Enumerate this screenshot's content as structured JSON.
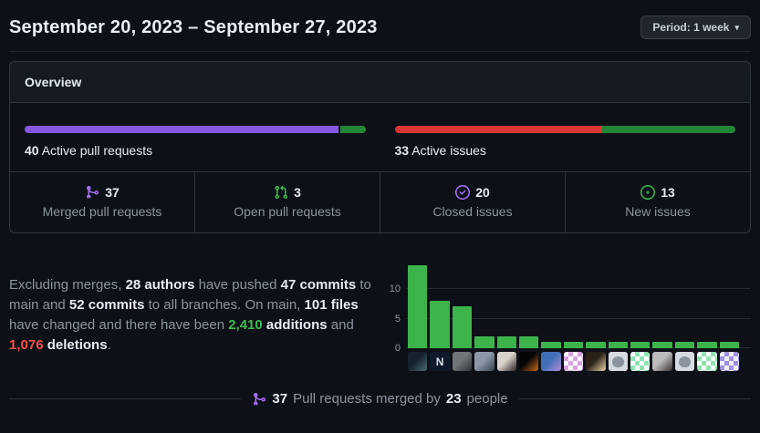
{
  "header": {
    "title": "September 20, 2023 – September 27, 2023",
    "period_label": "Period: 1 week"
  },
  "icons": {
    "dropdown_caret": "▾"
  },
  "colors": {
    "merged_purple": "#8957e5",
    "open_green": "#238636",
    "closed_red": "#da3633",
    "icon_purple": "#a371f7",
    "icon_green": "#3fb950",
    "additions_green": "#3fb950",
    "deletions_red": "#f85149"
  },
  "overview": {
    "title": "Overview",
    "pull_requests": {
      "count": "40",
      "label": " Active pull requests",
      "merged_pct": 92.5,
      "open_pct": 7.5,
      "merged_color": "#8957e5",
      "open_color": "#238636"
    },
    "issues": {
      "count": "33",
      "label": " Active issues",
      "closed_pct": 60.6,
      "new_pct": 39.4,
      "closed_color": "#da3633",
      "new_color": "#238636"
    },
    "stats": [
      {
        "value": "37",
        "label": "Merged pull requests"
      },
      {
        "value": "3",
        "label": "Open pull requests"
      },
      {
        "value": "20",
        "label": "Closed issues"
      },
      {
        "value": "13",
        "label": "New issues"
      }
    ]
  },
  "summary": {
    "p1": "Excluding merges, ",
    "authors": "28 authors",
    "p2": " have pushed ",
    "commits_main": "47 commits",
    "p3": " to main and ",
    "commits_all": "52 commits",
    "p4": " to all branches. On main, ",
    "files": "101 files",
    "p5": " have changed and there have been ",
    "additions_count": "2,410",
    "additions_word": " additions",
    "p6": " and ",
    "deletions_count": "1,076",
    "deletions_word": " deletions",
    "p7": "."
  },
  "chart_data": {
    "type": "bar",
    "title": "",
    "xlabel": "",
    "ylabel": "",
    "categories": [
      "author-1",
      "author-2",
      "author-3",
      "author-4",
      "author-5",
      "author-6",
      "author-7",
      "author-8",
      "author-9",
      "author-10",
      "author-11",
      "author-12",
      "author-13",
      "author-14",
      "author-15"
    ],
    "values": [
      14,
      8,
      7,
      2,
      2,
      2,
      1,
      1,
      1,
      1,
      1,
      1,
      1,
      1,
      1
    ],
    "yticks": [
      0,
      5,
      10
    ],
    "ylim": [
      0,
      14
    ],
    "grid": true,
    "bar_color": "#3cb44b",
    "x_axis_labels": "contributor avatars",
    "avatars": [
      {
        "kind": "photo",
        "c1": "#14222e",
        "c2": "#4e6b72"
      },
      {
        "kind": "letter",
        "c1": "#0d1b2a",
        "c2": "#d8e2ea",
        "glyph": "N"
      },
      {
        "kind": "photo",
        "c1": "#70757a",
        "c2": "#2e3236"
      },
      {
        "kind": "photo",
        "c1": "#8c97a8",
        "c2": "#37424e"
      },
      {
        "kind": "photo",
        "c1": "#d8d2ca",
        "c2": "#2a2125"
      },
      {
        "kind": "photo",
        "c1": "#050505",
        "c2": "#c96a1e"
      },
      {
        "kind": "photo",
        "c1": "#3f6fb5",
        "c2": "#b58bd9"
      },
      {
        "kind": "identicon",
        "c1": "#ffffff",
        "c2": "#d9a0de"
      },
      {
        "kind": "photo",
        "c1": "#2a2118",
        "c2": "#e8d9a8"
      },
      {
        "kind": "octocat",
        "c1": "#d6dbe1",
        "c2": "#8b949e"
      },
      {
        "kind": "identicon",
        "c1": "#ffffff",
        "c2": "#8fe3b0"
      },
      {
        "kind": "photo",
        "c1": "#bcbcbc",
        "c2": "#3a2f2a"
      },
      {
        "kind": "octocat",
        "c1": "#d6dbe1",
        "c2": "#8b949e"
      },
      {
        "kind": "identicon",
        "c1": "#ffffff",
        "c2": "#8fe3b0"
      },
      {
        "kind": "identicon",
        "c1": "#efeff7",
        "c2": "#9f8fe0"
      }
    ]
  },
  "footer": {
    "count": "37",
    "text_mid": " Pull requests merged by ",
    "people": "23",
    "text_end": " people"
  }
}
